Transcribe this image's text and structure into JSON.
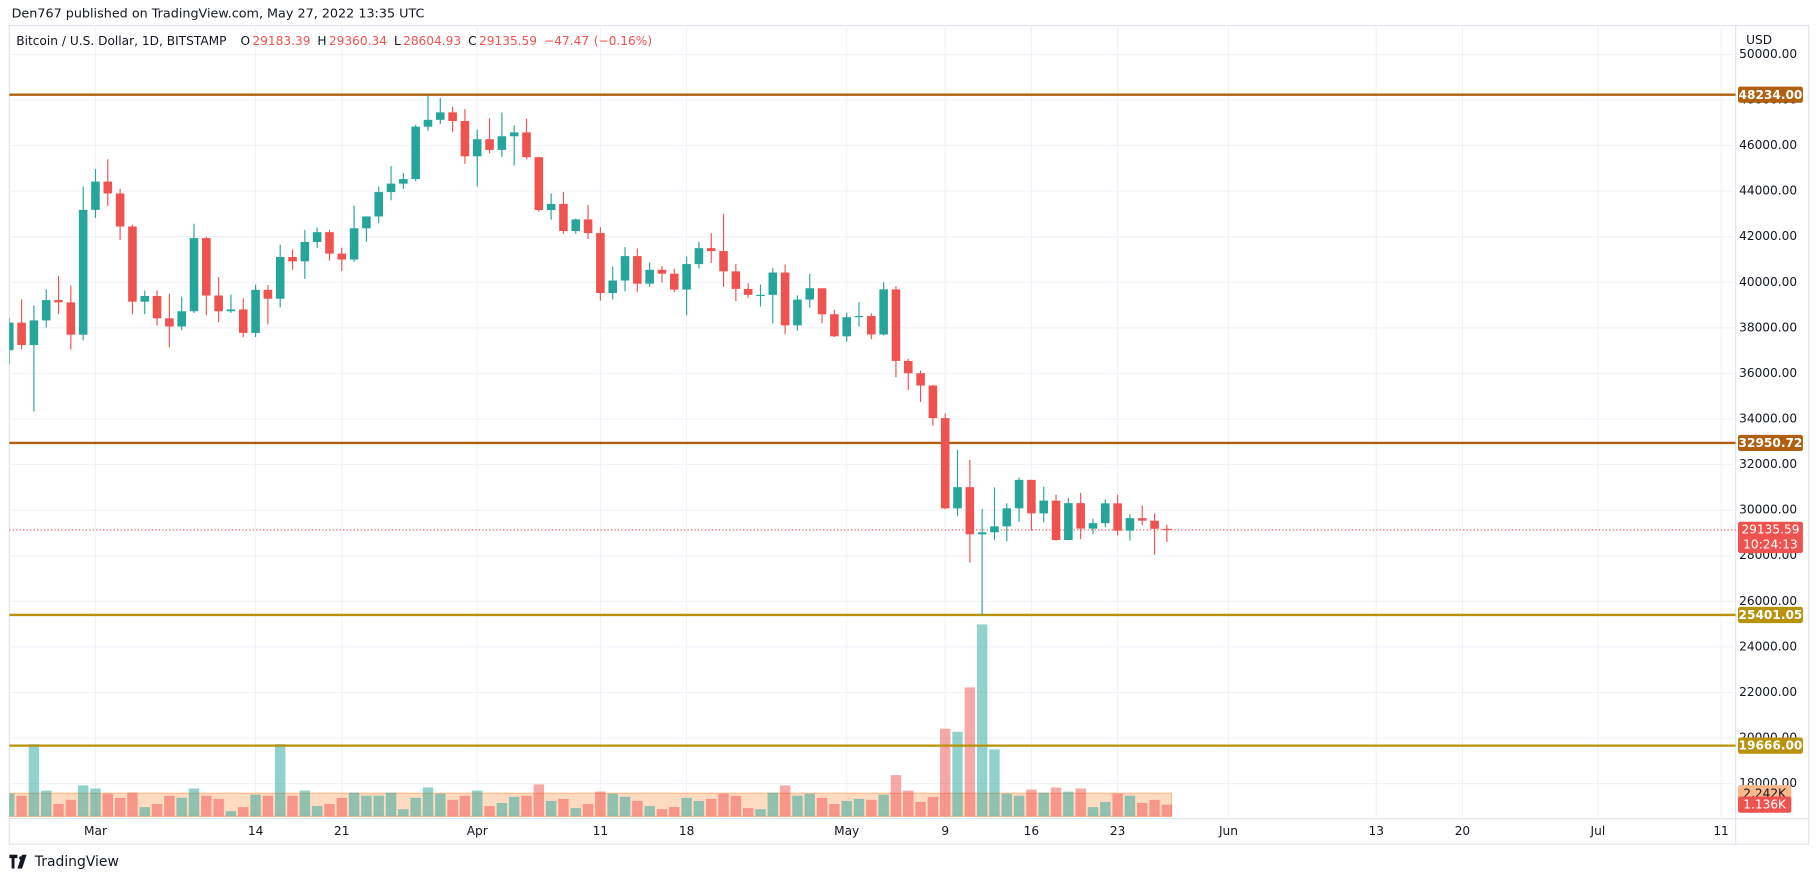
{
  "header": "Den767 published on TradingView.com, May 27, 2022 13:35 UTC",
  "footer": "TradingView",
  "chart_data": {
    "type": "candlestick",
    "title": "Bitcoin / U.S. Dollar, 1D, BITSTAMP",
    "ohlc": [
      {
        "label": "O",
        "value": 29183.39
      },
      {
        "label": "H",
        "value": 29360.34
      },
      {
        "label": "L",
        "value": 28604.93
      },
      {
        "label": "C",
        "value": 29135.59
      }
    ],
    "change": {
      "value": -47.47,
      "label": "−47.47"
    },
    "change_pct": {
      "value": -0.16,
      "label": "(−0.16%)"
    },
    "currency": "USD",
    "up_color": "#26a69a",
    "down_color": "#ef5350",
    "open": [
      37020,
      38230,
      37250,
      38330,
      39220,
      39120,
      37700,
      43180,
      44420,
      43900,
      42450,
      39150,
      39400,
      38420,
      38060,
      38730,
      41940,
      39420,
      38730,
      38810,
      37780,
      39670,
      39280,
      41110,
      40920,
      41770,
      42200,
      41260,
      41000,
      42370,
      42890,
      43960,
      44330,
      44530,
      46830,
      47130,
      47460,
      47080,
      45530,
      46280,
      45810,
      46410,
      46580,
      45490,
      43170,
      43440,
      42250,
      42760,
      42160,
      39530,
      40080,
      41150,
      39940,
      40550,
      40380,
      39680,
      40800,
      41500,
      41370,
      40480,
      39710,
      39450,
      39450,
      40430,
      38110,
      39240,
      39740,
      38600,
      37630,
      38470,
      38520,
      37710,
      39690,
      36550,
      36010,
      35470,
      34040,
      30080,
      31010,
      28940,
      29030,
      29290,
      30080,
      31330,
      29860,
      30420,
      28690,
      30310,
      29190,
      29430,
      30300,
      29100,
      29650,
      29540,
      29183.39
    ],
    "high": [
      38430,
      39250,
      38980,
      39700,
      40280,
      39860,
      44200,
      44970,
      45400,
      44100,
      42520,
      39640,
      39650,
      39500,
      39370,
      42570,
      42000,
      40230,
      39460,
      39300,
      39900,
      39880,
      41650,
      41440,
      42300,
      42400,
      42300,
      41520,
      43360,
      42900,
      44200,
      45100,
      44800,
      46910,
      48200,
      48100,
      47700,
      47600,
      46700,
      47200,
      47450,
      46880,
      47180,
      45510,
      43900,
      43960,
      42800,
      43400,
      42420,
      40680,
      41550,
      41480,
      40870,
      40710,
      40600,
      41120,
      41780,
      42150,
      43000,
      40800,
      39960,
      39900,
      40620,
      40780,
      39430,
      40370,
      39400,
      38800,
      38670,
      39130,
      38640,
      40000,
      39830,
      36650,
      36130,
      35490,
      34250,
      32650,
      32200,
      30050,
      31000,
      30300,
      31440,
      31330,
      31030,
      30680,
      30540,
      30760,
      29630,
      30470,
      30670,
      29830,
      30200,
      29860,
      29360.34
    ],
    "low": [
      36400,
      37050,
      34330,
      38010,
      38600,
      37050,
      37450,
      42830,
      43350,
      41850,
      38600,
      38600,
      38100,
      37150,
      37900,
      38650,
      38550,
      38250,
      38660,
      37600,
      37600,
      38150,
      38900,
      40550,
      40150,
      41500,
      40950,
      40500,
      40900,
      41780,
      42600,
      43600,
      44100,
      44440,
      46650,
      46950,
      46590,
      45200,
      44200,
      45660,
      45500,
      45120,
      45400,
      43100,
      42750,
      42130,
      42130,
      41900,
      39200,
      39250,
      39600,
      39580,
      39800,
      39990,
      39570,
      38560,
      40600,
      40850,
      39800,
      39180,
      39320,
      38940,
      38200,
      37720,
      37880,
      38890,
      38200,
      37600,
      37390,
      38050,
      37500,
      37670,
      35830,
      35270,
      34750,
      33700,
      30030,
      29750,
      27700,
      25400,
      28700,
      28630,
      29480,
      29100,
      29470,
      28660,
      28680,
      28730,
      28960,
      29250,
      28890,
      28670,
      29330,
      28050,
      28604.93
    ],
    "close": [
      38230,
      37250,
      38330,
      39220,
      39120,
      37700,
      43180,
      44420,
      43900,
      42450,
      39150,
      39400,
      38420,
      38060,
      38730,
      41940,
      39420,
      38730,
      38810,
      37780,
      39670,
      39280,
      41110,
      40920,
      41770,
      42200,
      41260,
      41000,
      42370,
      42890,
      43960,
      44330,
      44530,
      46830,
      47130,
      47460,
      47080,
      45530,
      46280,
      45810,
      46410,
      46580,
      45490,
      43170,
      43440,
      42250,
      42760,
      42160,
      39530,
      40080,
      41150,
      39940,
      40550,
      40380,
      39680,
      40800,
      41500,
      41370,
      40480,
      39710,
      39450,
      39450,
      40430,
      38110,
      39240,
      39740,
      38600,
      37630,
      38470,
      38520,
      37710,
      39690,
      36550,
      36010,
      35470,
      34040,
      30080,
      31010,
      28940,
      29030,
      29290,
      30080,
      31330,
      29860,
      30420,
      28690,
      30310,
      29190,
      29430,
      30300,
      29100,
      29650,
      29540,
      29183.39,
      29135.59
    ],
    "volume": [
      2200,
      2000,
      7000,
      2500,
      1200,
      1600,
      3000,
      2700,
      2200,
      1800,
      2300,
      900,
      1200,
      2000,
      1800,
      2700,
      2000,
      1700,
      500,
      900,
      2100,
      2000,
      7000,
      2000,
      2500,
      1000,
      1200,
      1800,
      2300,
      2000,
      2000,
      2300,
      700,
      1800,
      2800,
      2200,
      1600,
      2000,
      2500,
      1000,
      1300,
      1900,
      2000,
      3100,
      1500,
      1700,
      800,
      1200,
      2400,
      2200,
      1900,
      1500,
      1000,
      700,
      900,
      1800,
      1500,
      1700,
      2200,
      2000,
      800,
      700,
      2300,
      3000,
      2000,
      2200,
      1800,
      1200,
      1500,
      1700,
      1600,
      2100,
      4000,
      2500,
      1400,
      1900,
      8500,
      8200,
      12500,
      18600,
      6500,
      2200,
      2000,
      2600,
      2300,
      2800,
      2400,
      2700,
      900,
      1400,
      2200,
      2000,
      1300,
      1600,
      1136
    ],
    "volume_lim": [
      0,
      20000
    ],
    "volume_ma": {
      "value": 2242,
      "label": "2.242K",
      "color": "#ff9850"
    },
    "volume_last": {
      "value": 1136,
      "label": "1.136K"
    },
    "xlim": [
      0,
      140
    ],
    "xticks": [
      {
        "value": 7,
        "label": "Mar"
      },
      {
        "value": 20,
        "label": "14"
      },
      {
        "value": 27,
        "label": "21"
      },
      {
        "value": 38,
        "label": "Apr"
      },
      {
        "value": 48,
        "label": "11"
      },
      {
        "value": 55,
        "label": "18"
      },
      {
        "value": 68,
        "label": "May"
      },
      {
        "value": 76,
        "label": "9"
      },
      {
        "value": 83,
        "label": "16"
      },
      {
        "value": 90,
        "label": "23"
      },
      {
        "value": 99,
        "label": "Jun"
      },
      {
        "value": 111,
        "label": "13"
      },
      {
        "value": 118,
        "label": "20"
      },
      {
        "value": 129,
        "label": "Jul"
      },
      {
        "value": 139,
        "label": "11"
      }
    ],
    "ylim": [
      16460,
      51270
    ],
    "yticks": [
      {
        "value": 18000,
        "label": "18000.00"
      },
      {
        "value": 20000,
        "label": "20000.00"
      },
      {
        "value": 22000,
        "label": "22000.00"
      },
      {
        "value": 24000,
        "label": "24000.00"
      },
      {
        "value": 26000,
        "label": "26000.00"
      },
      {
        "value": 28000,
        "label": "28000.00"
      },
      {
        "value": 30000,
        "label": "30000.00"
      },
      {
        "value": 32000,
        "label": "32000.00"
      },
      {
        "value": 34000,
        "label": "34000.00"
      },
      {
        "value": 36000,
        "label": "36000.00"
      },
      {
        "value": 38000,
        "label": "38000.00"
      },
      {
        "value": 40000,
        "label": "40000.00"
      },
      {
        "value": 42000,
        "label": "42000.00"
      },
      {
        "value": 44000,
        "label": "44000.00"
      },
      {
        "value": 46000,
        "label": "46000.00"
      },
      {
        "value": 48000,
        "label": "48000.00"
      },
      {
        "value": 50000,
        "label": "50000.00"
      }
    ],
    "grid": true,
    "levels": [
      {
        "value": 48234,
        "label": "48234.00",
        "color": "#b0600e"
      },
      {
        "value": 32950.72,
        "label": "32950.72",
        "color": "#b0600e"
      },
      {
        "value": 25401.05,
        "label": "25401.05",
        "color": "#b8930a"
      },
      {
        "value": 19666,
        "label": "19666.00",
        "color": "#b8930a"
      }
    ],
    "last_price": {
      "value": 29135.59,
      "label": "29135.59",
      "countdown": "10:24:13",
      "color": "#ef5350"
    }
  }
}
